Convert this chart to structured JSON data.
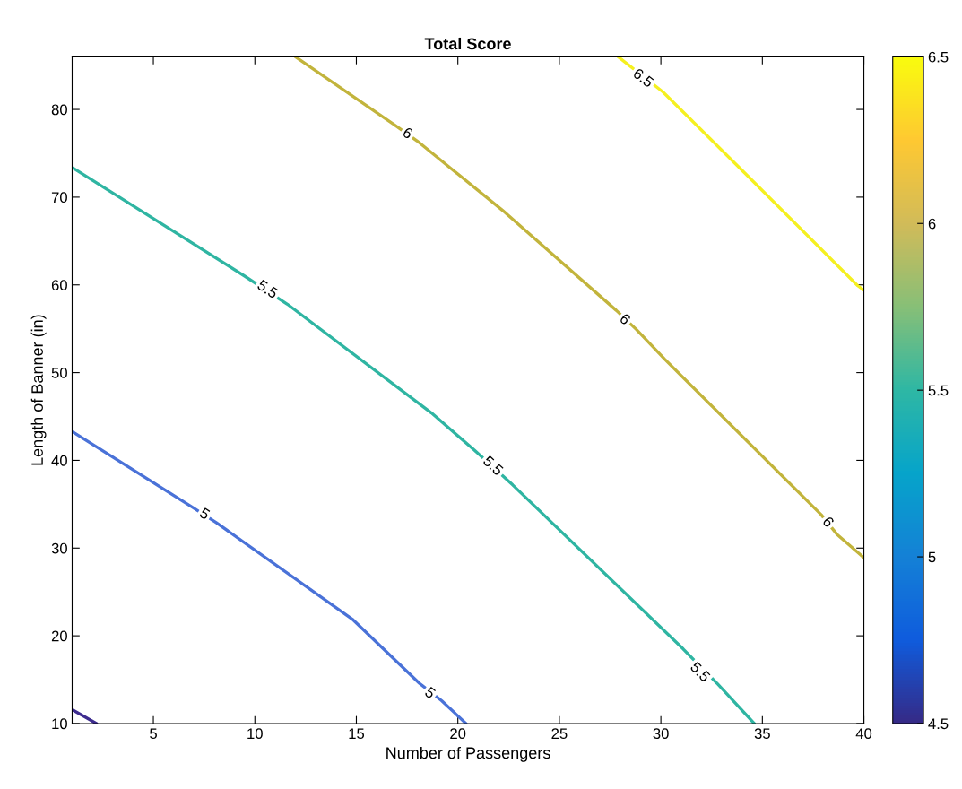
{
  "chart_data": {
    "type": "line",
    "title": "Total Score",
    "xlabel": "Number of Passengers",
    "ylabel": "Length of Banner (in)",
    "xlim": [
      1,
      40
    ],
    "xticks": [
      5,
      10,
      15,
      20,
      25,
      30,
      35,
      40
    ],
    "ylim": [
      10,
      86
    ],
    "yticks": [
      10,
      20,
      30,
      40,
      50,
      60,
      70,
      80
    ],
    "clim": [
      4.5,
      6.5
    ],
    "cticks": [
      4.5,
      5,
      5.5,
      6,
      6.5
    ],
    "grid": false,
    "legend": false,
    "line_style": "solid",
    "marker": "none",
    "series": [
      {
        "color": "#3d2c8f",
        "x": [
          1.06,
          2.2
        ],
        "values": [
          11.5,
          10
        ]
      },
      {
        "color": "#4a72d8",
        "x": [
          1.06,
          6.9,
          8.1,
          14.8,
          18.1,
          19.2,
          20.4
        ],
        "values": [
          43.2,
          34.7,
          32.9,
          21.9,
          14.6,
          12.6,
          10
        ]
      },
      {
        "color": "#2fb5a2",
        "x": [
          1.06,
          9.5,
          11.6,
          18.7,
          20.8,
          22.7,
          31.1,
          32.8,
          34.6
        ],
        "values": [
          73.3,
          61.0,
          57.8,
          45.4,
          41.2,
          37.2,
          18.5,
          14.5,
          10
        ]
      },
      {
        "color": "#c2b43c",
        "x": [
          12.0,
          16.9,
          18.0,
          22.2,
          27.8,
          28.8,
          30.2,
          37.9,
          38.7,
          40
        ],
        "values": [
          86,
          78.2,
          76.4,
          68.5,
          57.1,
          54.9,
          51.5,
          33.8,
          31.5,
          28.9
        ]
      },
      {
        "color": "#f5f020",
        "x": [
          27.9,
          30.1,
          34.2,
          39.7,
          40
        ],
        "values": [
          86,
          82.0,
          72.6,
          59.9,
          59.4
        ]
      }
    ],
    "annotations": [
      {
        "text": "5",
        "x": 7.5,
        "y": 33.8
      },
      {
        "text": "5",
        "x": 18.6,
        "y": 13.4
      },
      {
        "text": "5.5",
        "x": 10.6,
        "y": 59.4
      },
      {
        "text": "5.5",
        "x": 21.7,
        "y": 39.3
      },
      {
        "text": "5.5",
        "x": 31.9,
        "y": 15.8
      },
      {
        "text": "6",
        "x": 17.5,
        "y": 77.2
      },
      {
        "text": "6",
        "x": 28.2,
        "y": 56.0
      },
      {
        "text": "6",
        "x": 38.2,
        "y": 32.9
      },
      {
        "text": "6.5",
        "x": 29.1,
        "y": 83.5
      }
    ]
  }
}
